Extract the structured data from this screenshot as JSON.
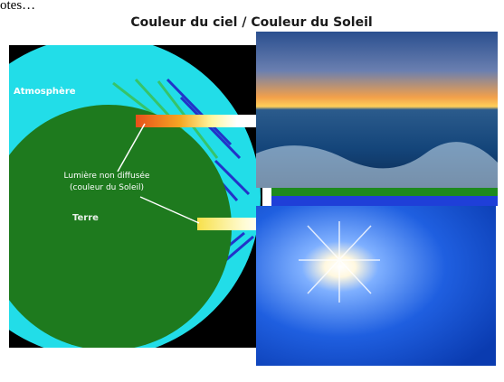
{
  "header": {
    "fragment": "otes…"
  },
  "title": "Couleur du ciel / Couleur du Soleil",
  "labels": {
    "atmosphere": "Atmosphère",
    "light": [
      "Lumière non diffusée",
      "(couleur du Soleil)"
    ],
    "earth": "Terre"
  }
}
